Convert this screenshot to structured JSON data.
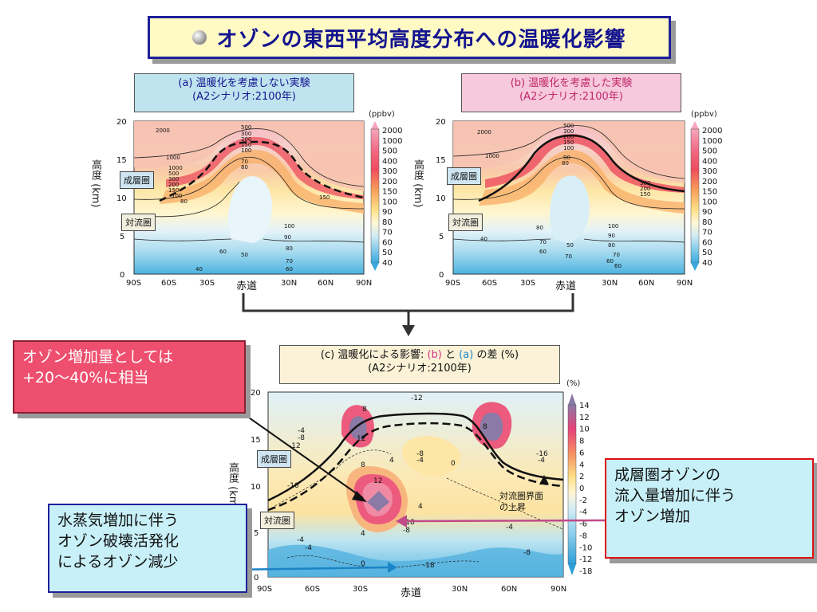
{
  "title": "オゾンの東西平均高度分布への温暖化影響",
  "panel_a": {
    "line1": "(a) 温暖化を考慮しない実験",
    "line2": "(A2シナリオ:2100年)",
    "unit": "(ppbv)",
    "yticks": [
      "20",
      "15",
      "10",
      "5",
      "0"
    ],
    "xticks": [
      "90S",
      "60S",
      "30S",
      "30N",
      "60N",
      "90N"
    ],
    "equator": "赤道",
    "ylabel": "高度 (km)",
    "stratosphere": "成層圏",
    "troposphere": "対流圏",
    "contour_labels": [
      "2000",
      "1000",
      "500",
      "300",
      "200",
      "150",
      "100",
      "70",
      "80",
      "60",
      "50",
      "40",
      "100",
      "90",
      "80",
      "70",
      "60",
      "150",
      "1000",
      "500",
      "300",
      "200",
      "150",
      "100",
      "80"
    ]
  },
  "panel_b": {
    "line1": "(b) 温暖化を考慮した実験",
    "line2": "(A2シナリオ:2100年)",
    "unit": "(ppbv)",
    "yticks": [
      "20",
      "15",
      "10",
      "5",
      "0"
    ],
    "xticks": [
      "90S",
      "60S",
      "30S",
      "30N",
      "60N",
      "90N"
    ],
    "equator": "赤道",
    "ylabel": "高度 (km)",
    "stratosphere": "成層圏",
    "troposphere": "対流圏",
    "contour_labels": [
      "2000",
      "1000",
      "500",
      "300",
      "200",
      "150",
      "100",
      "90",
      "80",
      "70",
      "60",
      "50",
      "40",
      "80",
      "70",
      "60",
      "300",
      "200",
      "150",
      "100",
      "90",
      "80",
      "70",
      "60"
    ]
  },
  "ab_colorbar": [
    "2000",
    "1000",
    "500",
    "400",
    "300",
    "200",
    "150",
    "100",
    "90",
    "80",
    "70",
    "60",
    "50",
    "40"
  ],
  "panel_c": {
    "prefix": "(c) 温暖化による影響:",
    "b": "(b)",
    "and": "と",
    "a": "(a)",
    "suffix": "の差 (%)",
    "line2": "(A2シナリオ:2100年)",
    "unit": "(%)",
    "yticks": [
      "20",
      "15",
      "10",
      "5",
      "0"
    ],
    "xticks": [
      "90S",
      "60S",
      "30S",
      "30N",
      "60N",
      "90N"
    ],
    "equator": "赤道",
    "ylabel": "高度 (km)",
    "stratosphere": "成層圏",
    "troposphere": "対流圏",
    "tropopause_note_1": "対流圏界面",
    "tropopause_note_2": "の上昇",
    "colorbar": [
      "14",
      "12",
      "10",
      "8",
      "6",
      "4",
      "2",
      "0",
      "-2",
      "-4",
      "-6",
      "-8",
      "-10",
      "-12",
      "-18"
    ],
    "contour_labels": [
      "-12",
      "8",
      "12",
      "4",
      "8",
      "12",
      "4",
      "-8",
      "-4",
      "0",
      "-4",
      "-8",
      "-18",
      "-12",
      "-16",
      "-10",
      "-4",
      "-4",
      "8",
      "4",
      "0",
      "-4",
      "-8",
      "-18",
      "-8",
      "-4"
    ]
  },
  "callouts": {
    "red": [
      "オゾン増加量としては",
      "+20〜40%に相当"
    ],
    "blue": [
      "水蒸気増加に伴う",
      "オゾン破壊活発化",
      "によるオゾン減少"
    ],
    "right": [
      "成層圏オゾンの",
      "流入量増加に伴う",
      "オゾン増加"
    ]
  }
}
